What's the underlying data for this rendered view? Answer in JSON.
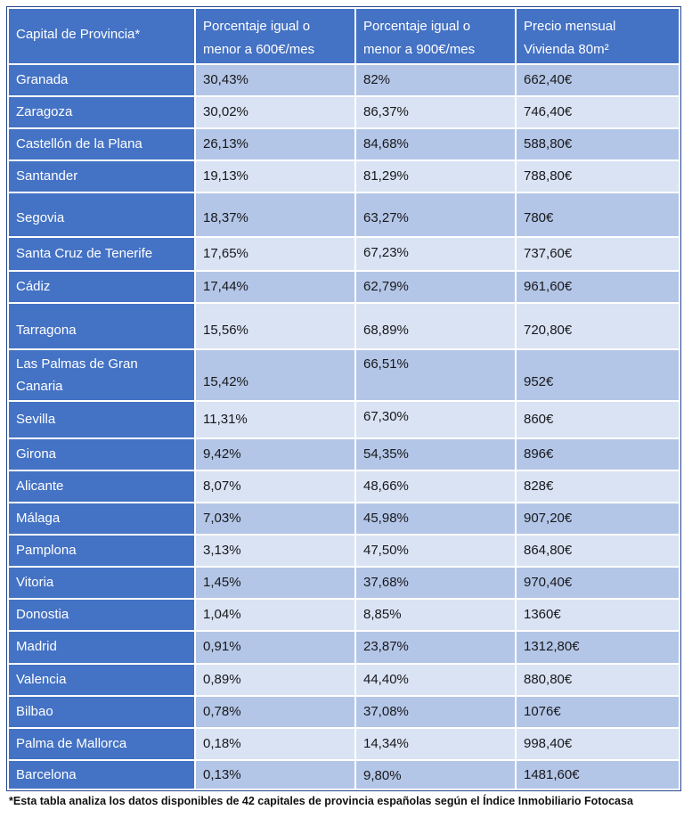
{
  "colors": {
    "header_blue": "#4472C4",
    "band_dark": "#B4C6E7",
    "band_light": "#DAE3F3",
    "header_text": "#FFFFFF"
  },
  "table": {
    "columns": [
      "Capital de Provincia*",
      "Porcentaje igual o\nmenor a 600€/mes",
      "Porcentaje igual o\nmenor a 900€/mes",
      "Precio mensual\nVivienda 80m²"
    ],
    "rows": [
      {
        "capital": "Granada",
        "pct600": "30,43%",
        "pct900": "82%",
        "price": "662,40€"
      },
      {
        "capital": "Zaragoza",
        "pct600": "30,02%",
        "pct900": "86,37%",
        "price": "746,40€"
      },
      {
        "capital": "Castellón de la Plana",
        "pct600": "26,13%",
        "pct900": "84,68%",
        "price": "588,80€"
      },
      {
        "capital": "Santander",
        "pct600": "19,13%",
        "pct900": "81,29%",
        "price": "788,80€"
      },
      {
        "capital": "Segovia",
        "pct600": "18,37%",
        "pct900": "63,27%",
        "price": "780€"
      },
      {
        "capital": "Santa Cruz de Tenerife",
        "pct600": "17,65%",
        "pct900": "67,23%",
        "price": "737,60€"
      },
      {
        "capital": "Cádiz",
        "pct600": "17,44%",
        "pct900": "62,79%",
        "price": "961,60€"
      },
      {
        "capital": "Tarragona",
        "pct600": "15,56%",
        "pct900": "68,89%",
        "price": "720,80€"
      },
      {
        "capital": "Las Palmas de Gran\nCanaria",
        "pct600": "15,42%",
        "pct900": "66,51%",
        "price": "952€"
      },
      {
        "capital": "Sevilla",
        "pct600": "11,31%",
        "pct900": "67,30%",
        "price": "860€"
      },
      {
        "capital": "Girona",
        "pct600": "9,42%",
        "pct900": "54,35%",
        "price": "896€"
      },
      {
        "capital": "Alicante",
        "pct600": "8,07%",
        "pct900": "48,66%",
        "price": "828€"
      },
      {
        "capital": "Málaga",
        "pct600": "7,03%",
        "pct900": "45,98%",
        "price": "907,20€"
      },
      {
        "capital": "Pamplona",
        "pct600": "3,13%",
        "pct900": "47,50%",
        "price": "864,80€"
      },
      {
        "capital": "Vitoria",
        "pct600": "1,45%",
        "pct900": "37,68%",
        "price": "970,40€"
      },
      {
        "capital": "Donostia",
        "pct600": "1,04%",
        "pct900": "8,85%",
        "price": "1360€"
      },
      {
        "capital": "Madrid",
        "pct600": "0,91%",
        "pct900": "23,87%",
        "price": "1312,80€"
      },
      {
        "capital": "Valencia",
        "pct600": "0,89%",
        "pct900": "44,40%",
        "price": "880,80€"
      },
      {
        "capital": "Bilbao",
        "pct600": "0,78%",
        "pct900": "37,08%",
        "price": "1076€"
      },
      {
        "capital": "Palma de Mallorca",
        "pct600": "0,18%",
        "pct900": "14,34%",
        "price": "998,40€"
      },
      {
        "capital": "Barcelona",
        "pct600": "0,13%",
        "pct900": "9,80%",
        "price": "1481,60€"
      }
    ]
  },
  "footnote": "*Esta tabla analiza los datos disponibles de 42 capitales de provincia españolas según el Índice Inmobiliario Fotocasa"
}
